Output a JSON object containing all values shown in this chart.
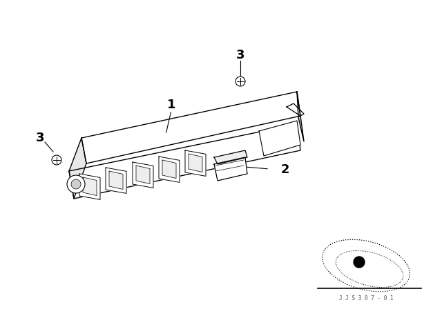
{
  "bg_color": "#ffffff",
  "label_1": "1",
  "label_2": "2",
  "label_3_top": "3",
  "label_3_left": "3",
  "part_color": "#000000",
  "line_color": "#000000",
  "figsize": [
    6.4,
    4.48
  ],
  "dpi": 100,
  "title": "",
  "watermark": "J J S 3 0 7 - 0 1"
}
